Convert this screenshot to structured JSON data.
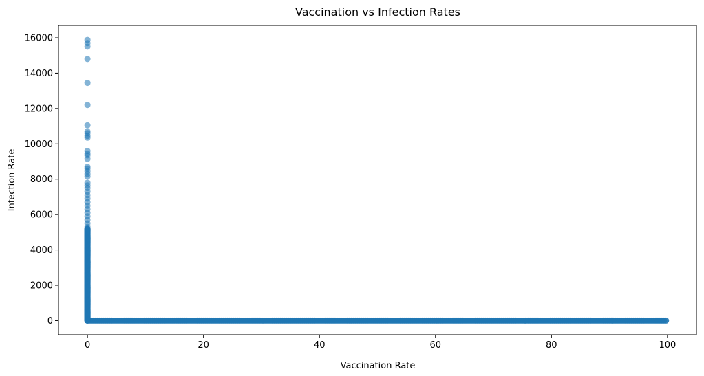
{
  "chart_data": {
    "type": "scatter",
    "title": "Vaccination vs Infection Rates",
    "xlabel": "Vaccination Rate",
    "ylabel": "Infection Rate",
    "xlim": [
      -5,
      105
    ],
    "ylim": [
      -800,
      16700
    ],
    "xticks": [
      0,
      20,
      40,
      60,
      80,
      100
    ],
    "yticks": [
      0,
      2000,
      4000,
      6000,
      8000,
      10000,
      12000,
      14000,
      16000
    ],
    "grid": false,
    "legend": "none",
    "marker_color": "#1f77b4",
    "marker_alpha": 0.55,
    "series": [
      {
        "x_near_zero_points": [
          {
            "x": 0,
            "y": 15880
          },
          {
            "x": 0,
            "y": 15700
          },
          {
            "x": 0,
            "y": 15500
          },
          {
            "x": 0,
            "y": 14800
          },
          {
            "x": 0,
            "y": 13450
          },
          {
            "x": 0,
            "y": 12200
          },
          {
            "x": 0,
            "y": 11050
          },
          {
            "x": 0,
            "y": 10700
          },
          {
            "x": 0,
            "y": 10600
          },
          {
            "x": 0,
            "y": 10450
          },
          {
            "x": 0,
            "y": 10350
          },
          {
            "x": 0,
            "y": 9600
          },
          {
            "x": 0,
            "y": 9450
          },
          {
            "x": 0,
            "y": 9350
          },
          {
            "x": 0,
            "y": 9150
          },
          {
            "x": 0,
            "y": 8700
          },
          {
            "x": 0,
            "y": 8600
          },
          {
            "x": 0,
            "y": 8450
          },
          {
            "x": 0,
            "y": 8300
          },
          {
            "x": 0,
            "y": 8150
          },
          {
            "x": 0,
            "y": 7800
          },
          {
            "x": 0,
            "y": 7650
          },
          {
            "x": 0,
            "y": 7500
          },
          {
            "x": 0,
            "y": 7300
          },
          {
            "x": 0,
            "y": 7100
          },
          {
            "x": 0,
            "y": 6900
          },
          {
            "x": 0,
            "y": 6700
          },
          {
            "x": 0,
            "y": 6500
          },
          {
            "x": 0,
            "y": 6300
          },
          {
            "x": 0,
            "y": 6100
          },
          {
            "x": 0,
            "y": 5900
          },
          {
            "x": 0,
            "y": 5700
          },
          {
            "x": 0,
            "y": 5500
          },
          {
            "x": 0,
            "y": 5300
          }
        ],
        "dense_vertical_band": {
          "x": 0,
          "y_from": 0,
          "y_to": 5200
        },
        "dense_horizontal_band": {
          "x_from": 0,
          "x_to": 100,
          "y": 0
        }
      }
    ]
  }
}
